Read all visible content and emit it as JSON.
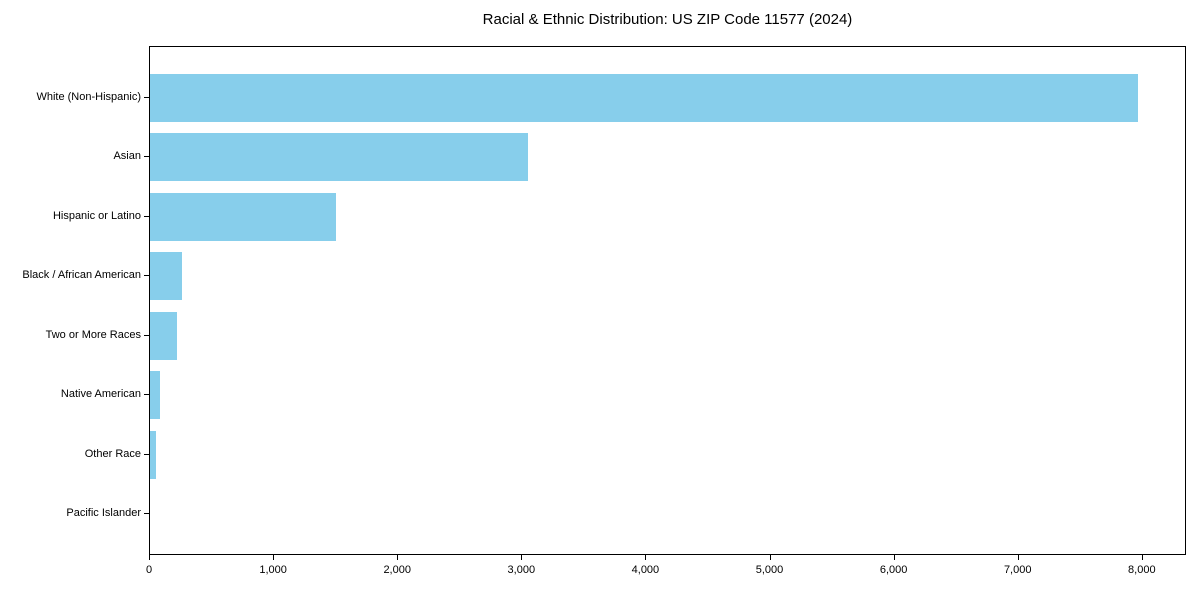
{
  "chart_data": {
    "type": "bar",
    "orientation": "horizontal",
    "title": "Racial & Ethnic Distribution: US ZIP Code 11577 (2024)",
    "categories": [
      "White (Non-Hispanic)",
      "Asian",
      "Hispanic or Latino",
      "Black / African American",
      "Two or More Races",
      "Native American",
      "Other Race",
      "Pacific Islander"
    ],
    "values": [
      7960,
      3045,
      1500,
      260,
      220,
      80,
      45,
      0
    ],
    "xlabel": "",
    "ylabel": "",
    "xlim": [
      0,
      8356
    ],
    "x_ticks": [
      0,
      1000,
      2000,
      3000,
      4000,
      5000,
      6000,
      7000,
      8000
    ],
    "x_tick_labels": [
      "0",
      "1,000",
      "2,000",
      "3,000",
      "4,000",
      "5,000",
      "6,000",
      "7,000",
      "8,000"
    ],
    "grid": false,
    "bar_color": "#87ceeb",
    "axis_color": "#000000",
    "text_color": "#000000",
    "background_color": "#ffffff"
  }
}
